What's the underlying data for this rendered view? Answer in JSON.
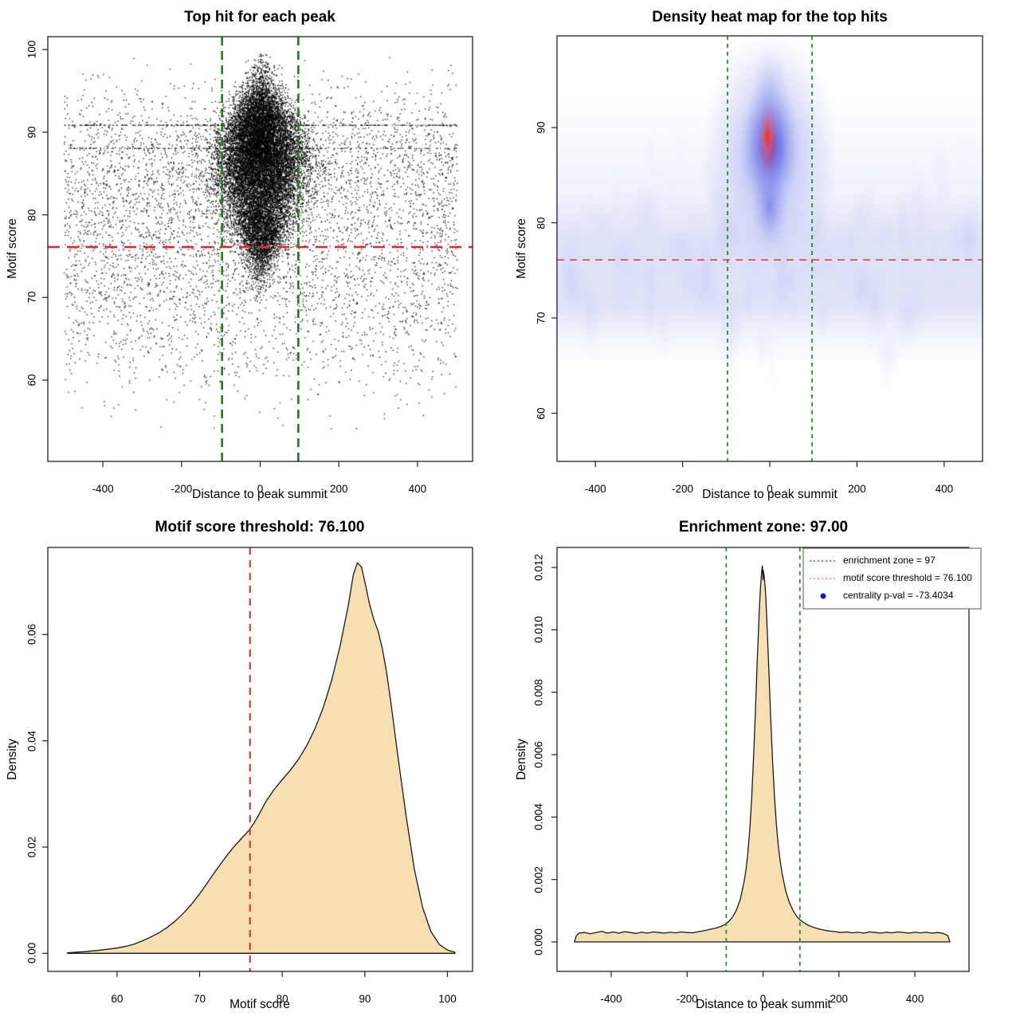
{
  "colors": {
    "background": "#ffffff",
    "box_stroke": "#222222",
    "point_black": "#000000",
    "area_fill": "#f6dfb2",
    "area_stroke": "#1a1a1a",
    "green_thick": "#1d7c1d",
    "green_thin": "#2e8b2e",
    "red_thick": "#e02a2a",
    "red_thin": "#ee4040",
    "legend_red": "#f08080",
    "legend_blue": "#1414cc",
    "heat_core": "#f50f0c",
    "heat_mid": "#1d1de8",
    "heat_halo": "#9aa4ec",
    "heat_band": "#c9cff2"
  },
  "chart_data": [
    {
      "id": "top-hit-scatter",
      "type": "scatter",
      "title": "Top hit for each peak",
      "xlabel": "Distance to peak summit",
      "ylabel": "Motif score",
      "xlim": [
        -540,
        540
      ],
      "ylim": [
        50.16,
        101.56
      ],
      "xticks": [
        -400,
        -200,
        0,
        200,
        400
      ],
      "xtick_labels": [
        "-400",
        "-200",
        "0",
        "200",
        "400"
      ],
      "yticks": [
        60,
        70,
        80,
        90,
        100
      ],
      "ytick_labels": [
        "60",
        "70",
        "80",
        "90",
        "100"
      ],
      "vlines": {
        "x": [
          -97,
          97
        ],
        "color": "#1d7c1d",
        "dash": [
          11,
          7
        ],
        "width": 2.6
      },
      "hline": {
        "y": 76.1,
        "color": "#e02a2a",
        "dash": [
          15,
          9
        ],
        "width": 2.6
      },
      "distribution": {
        "note": "approx. generative spec of depicted point cloud",
        "background": {
          "n": 5200,
          "x_uniform": [
            -500,
            500
          ],
          "y_mixture": [
            [
              0.3,
              87.5,
              4.5
            ],
            [
              0.3,
              80,
              6
            ],
            [
              0.3,
              73,
              5.5
            ],
            [
              0.1,
              64,
              4
            ]
          ]
        },
        "cluster": {
          "n": 16000,
          "y_mixture": [
            [
              0.28,
              91,
              3
            ],
            [
              0.34,
              87,
              3.2
            ],
            [
              0.26,
              82.5,
              3.5
            ],
            [
              0.12,
              77.5,
              2.5
            ]
          ],
          "x_sd_rule": "10+48*exp(-((y-85.5)^2)/90)"
        },
        "striation_scores": [
          90.9,
          88.1
        ]
      }
    },
    {
      "id": "density-heatmap",
      "type": "heatmap",
      "title": "Density heat map for the top hits",
      "xlabel": "Distance to peak summit",
      "ylabel": "Motif score",
      "xlim": [
        -488,
        488
      ],
      "ylim": [
        54.94,
        99.63
      ],
      "xticks": [
        -400,
        -200,
        0,
        200,
        400
      ],
      "xtick_labels": [
        "-400",
        "-200",
        "0",
        "200",
        "400"
      ],
      "yticks": [
        60,
        70,
        80,
        90
      ],
      "ytick_labels": [
        "60",
        "70",
        "80",
        "90"
      ],
      "vlines": {
        "x": [
          -97,
          97
        ],
        "color": "#2e8b2e",
        "dash": [
          5,
          5
        ],
        "width": 1.8
      },
      "hline": {
        "y": 76.1,
        "color": "#ee4040",
        "dash": [
          9,
          7
        ],
        "width": 1.6
      },
      "hotspot": {
        "x": 0,
        "y": 88.5,
        "x_spread": 30,
        "y_spread_core": [
          85.5,
          91.5
        ],
        "y_spread_blue": [
          79,
          94
        ],
        "y_spread_halo": [
          73,
          97.5
        ]
      },
      "band": {
        "y_range": [
          67,
          81
        ],
        "full_width": true
      }
    },
    {
      "id": "motif-score-density",
      "type": "area",
      "title": "Motif score threshold: 76.100",
      "xlabel": "Motif score",
      "ylabel": "Density",
      "xlim": [
        51.62,
        103.04
      ],
      "ylim": [
        -0.0034,
        0.0764
      ],
      "xticks": [
        60,
        70,
        80,
        90,
        100
      ],
      "xtick_labels": [
        "60",
        "70",
        "80",
        "90",
        "100"
      ],
      "yticks": [
        0,
        0.02,
        0.04,
        0.06
      ],
      "ytick_labels": [
        "0.00",
        "0.02",
        "0.04",
        "0.06"
      ],
      "vline": {
        "x": 76.1,
        "color": "#d93636",
        "dash": [
          9,
          7
        ],
        "width": 2.2
      },
      "curve": [
        [
          54,
          0.0001
        ],
        [
          56,
          0.0003
        ],
        [
          58,
          0.0006
        ],
        [
          60,
          0.001
        ],
        [
          61,
          0.0013
        ],
        [
          62,
          0.0017
        ],
        [
          63,
          0.0023
        ],
        [
          64,
          0.003
        ],
        [
          65,
          0.0038
        ],
        [
          66,
          0.0048
        ],
        [
          67,
          0.006
        ],
        [
          68,
          0.0075
        ],
        [
          69,
          0.0092
        ],
        [
          70,
          0.0112
        ],
        [
          71,
          0.0134
        ],
        [
          72,
          0.0157
        ],
        [
          73,
          0.0178
        ],
        [
          74,
          0.0198
        ],
        [
          75,
          0.0215
        ],
        [
          76,
          0.0232
        ],
        [
          76.5,
          0.0243
        ],
        [
          77,
          0.0256
        ],
        [
          78,
          0.0285
        ],
        [
          79,
          0.0308
        ],
        [
          80,
          0.0327
        ],
        [
          81,
          0.0345
        ],
        [
          82,
          0.0366
        ],
        [
          83,
          0.0392
        ],
        [
          84,
          0.0424
        ],
        [
          85,
          0.0464
        ],
        [
          86,
          0.0515
        ],
        [
          87,
          0.0578
        ],
        [
          88,
          0.0655
        ],
        [
          88.6,
          0.0712
        ],
        [
          89.1,
          0.0735
        ],
        [
          89.6,
          0.0727
        ],
        [
          90.1,
          0.0692
        ],
        [
          90.6,
          0.0655
        ],
        [
          91.1,
          0.0628
        ],
        [
          91.6,
          0.0607
        ],
        [
          92.1,
          0.0575
        ],
        [
          92.6,
          0.0532
        ],
        [
          93.1,
          0.0478
        ],
        [
          94,
          0.0371
        ],
        [
          95,
          0.0258
        ],
        [
          96,
          0.0158
        ],
        [
          97,
          0.0086
        ],
        [
          98,
          0.0041
        ],
        [
          99,
          0.0017
        ],
        [
          100,
          0.0006
        ],
        [
          100.9,
          0.0002
        ]
      ]
    },
    {
      "id": "enrichment-zone-density",
      "type": "area",
      "title": "Enrichment zone: 97.00",
      "xlabel": "Distance to peak summit",
      "ylabel": "Density",
      "xlim": [
        -542.8,
        542.6
      ],
      "ylim": [
        -0.000945,
        0.01264
      ],
      "xticks": [
        -400,
        -200,
        0,
        200,
        400
      ],
      "xtick_labels": [
        "-400",
        "-200",
        "0",
        "200",
        "400"
      ],
      "yticks": [
        0,
        0.002,
        0.004,
        0.006,
        0.008,
        0.01,
        0.012
      ],
      "ytick_labels": [
        "0.000",
        "0.002",
        "0.004",
        "0.006",
        "0.008",
        "0.010",
        "0.012"
      ],
      "vlines": {
        "x": [
          -97,
          97
        ],
        "color": "#2e8b2e",
        "dash": [
          5,
          5
        ],
        "width": 1.8
      },
      "curve": [
        [
          -497,
          0
        ],
        [
          -492,
          0.0002
        ],
        [
          -485,
          0.00028
        ],
        [
          -470,
          0.0003
        ],
        [
          -455,
          0.00026
        ],
        [
          -440,
          0.0003
        ],
        [
          -425,
          0.00034
        ],
        [
          -410,
          0.00028
        ],
        [
          -395,
          0.00032
        ],
        [
          -380,
          0.00028
        ],
        [
          -365,
          0.00033
        ],
        [
          -350,
          0.0003
        ],
        [
          -335,
          0.00027
        ],
        [
          -320,
          0.00031
        ],
        [
          -305,
          0.00028
        ],
        [
          -290,
          0.00032
        ],
        [
          -275,
          0.0003
        ],
        [
          -260,
          0.00028
        ],
        [
          -245,
          0.00031
        ],
        [
          -230,
          0.00029
        ],
        [
          -215,
          0.00032
        ],
        [
          -200,
          0.0003
        ],
        [
          -185,
          0.00029
        ],
        [
          -170,
          0.00033
        ],
        [
          -155,
          0.00036
        ],
        [
          -140,
          0.0004
        ],
        [
          -125,
          0.00044
        ],
        [
          -110,
          0.0005
        ],
        [
          -100,
          0.00056
        ],
        [
          -90,
          0.00066
        ],
        [
          -80,
          0.0008
        ],
        [
          -70,
          0.00102
        ],
        [
          -60,
          0.00136
        ],
        [
          -50,
          0.00192
        ],
        [
          -45,
          0.0023
        ],
        [
          -40,
          0.00285
        ],
        [
          -35,
          0.0036
        ],
        [
          -30,
          0.0046
        ],
        [
          -25,
          0.0059
        ],
        [
          -20,
          0.0074
        ],
        [
          -15,
          0.0091
        ],
        [
          -10,
          0.0106
        ],
        [
          -7,
          0.0113
        ],
        [
          -4,
          0.0118
        ],
        [
          -2,
          0.01205
        ],
        [
          -1,
          0.0119
        ],
        [
          0,
          0.0116
        ],
        [
          1,
          0.0119
        ],
        [
          2,
          0.0118
        ],
        [
          4,
          0.0116
        ],
        [
          7,
          0.0111
        ],
        [
          10,
          0.0103
        ],
        [
          15,
          0.0088
        ],
        [
          20,
          0.0072
        ],
        [
          25,
          0.0058
        ],
        [
          30,
          0.0047
        ],
        [
          35,
          0.0038
        ],
        [
          40,
          0.0031
        ],
        [
          45,
          0.0026
        ],
        [
          50,
          0.0022
        ],
        [
          60,
          0.00162
        ],
        [
          70,
          0.00124
        ],
        [
          80,
          0.00098
        ],
        [
          90,
          0.0008
        ],
        [
          100,
          0.00068
        ],
        [
          115,
          0.00056
        ],
        [
          130,
          0.00048
        ],
        [
          145,
          0.00042
        ],
        [
          160,
          0.00038
        ],
        [
          175,
          0.00035
        ],
        [
          190,
          0.00033
        ],
        [
          205,
          0.0003
        ],
        [
          220,
          0.00032
        ],
        [
          235,
          0.00029
        ],
        [
          250,
          0.00031
        ],
        [
          265,
          0.00028
        ],
        [
          280,
          0.00032
        ],
        [
          295,
          0.0003
        ],
        [
          310,
          0.00028
        ],
        [
          325,
          0.00031
        ],
        [
          340,
          0.00029
        ],
        [
          355,
          0.00032
        ],
        [
          370,
          0.0003
        ],
        [
          385,
          0.00028
        ],
        [
          400,
          0.00031
        ],
        [
          415,
          0.00029
        ],
        [
          430,
          0.00031
        ],
        [
          445,
          0.00028
        ],
        [
          460,
          0.0003
        ],
        [
          475,
          0.00027
        ],
        [
          487,
          0.0002
        ],
        [
          492,
          0
        ]
      ],
      "legend": {
        "items": [
          {
            "swatch": "dotted-line",
            "color": "#2e8b2e",
            "label": "enrichment zone = 97"
          },
          {
            "swatch": "dotted-line",
            "color": "#f08080",
            "label": "motif score threshold = 76.100"
          },
          {
            "swatch": "dot",
            "color": "#1414cc",
            "label": "centrality p-val = -73.4034"
          }
        ]
      }
    }
  ]
}
